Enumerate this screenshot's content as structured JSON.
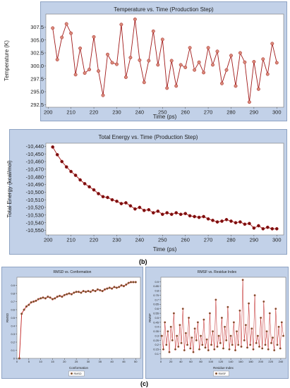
{
  "labels": {
    "b": "(b)",
    "c": "(c)"
  },
  "chart_data": [
    {
      "id": "temp",
      "type": "line",
      "title": "Temperature vs. Time  (Production Step)",
      "xlabel": "Time (ps)",
      "ylabel": "Temperature (K)",
      "xlim": [
        199,
        303
      ],
      "ylim": [
        292,
        310
      ],
      "xticks": [
        200,
        210,
        220,
        230,
        240,
        250,
        260,
        270,
        280,
        290,
        300
      ],
      "yticks": [
        292.5,
        295.0,
        297.5,
        300.0,
        302.5,
        305.0,
        307.5
      ],
      "ytick_labels": [
        "292.5",
        "295.0",
        "297.5",
        "300.0",
        "302.5",
        "305.0",
        "307.5"
      ],
      "grid": false,
      "colors": {
        "line": "#a01818",
        "marker": "#d98a7a"
      },
      "x": [
        202,
        204,
        206,
        208,
        210,
        212,
        214,
        216,
        218,
        220,
        222,
        224,
        226,
        228,
        230,
        232,
        234,
        236,
        238,
        240,
        242,
        244,
        246,
        248,
        250,
        252,
        254,
        256,
        258,
        260,
        262,
        264,
        266,
        268,
        270,
        272,
        274,
        276,
        278,
        280,
        282,
        284,
        286,
        288,
        290,
        292,
        294,
        296,
        298,
        300
      ],
      "values": [
        307.3,
        301.2,
        305.5,
        308.1,
        306.3,
        298.3,
        303.4,
        298.6,
        299.3,
        305.6,
        299.0,
        294.3,
        302.2,
        300.6,
        300.3,
        308.0,
        297.8,
        301.6,
        309.0,
        301.1,
        296.8,
        301.0,
        306.7,
        300.2,
        305.1,
        295.7,
        301.0,
        296.1,
        300.2,
        299.7,
        303.5,
        299.2,
        300.7,
        298.7,
        303.5,
        300.2,
        302.8,
        296.6,
        299.2,
        302.0,
        296.1,
        302.5,
        300.7,
        293.0,
        300.8,
        295.5,
        301.3,
        298.4,
        304.3,
        300.6
      ]
    },
    {
      "id": "energy",
      "type": "line",
      "title": "Total Energy vs. Time  (Production Step)",
      "xlabel": "Time (ps)",
      "ylabel": "Total Energy (kcal/mol)",
      "xlim": [
        199,
        303
      ],
      "ylim": [
        -10556,
        -10436
      ],
      "xticks": [
        200,
        210,
        220,
        230,
        240,
        250,
        260,
        270,
        280,
        290,
        300
      ],
      "yticks": [
        -10440,
        -10450,
        -10460,
        -10470,
        -10480,
        -10490,
        -10500,
        -10510,
        -10520,
        -10530,
        -10540,
        -10550
      ],
      "ytick_labels": [
        "-10,440",
        "-10,450",
        "-10,460",
        "-10,470",
        "-10,480",
        "-10,490",
        "-10,500",
        "-10,510",
        "-10,520",
        "-10,530",
        "-10,540",
        "-10,550"
      ],
      "grid": false,
      "colors": {
        "line": "#a01818",
        "marker": "#7a1010"
      },
      "x": [
        202,
        204,
        206,
        208,
        210,
        212,
        214,
        216,
        218,
        220,
        222,
        224,
        226,
        228,
        230,
        232,
        234,
        236,
        238,
        240,
        242,
        244,
        246,
        248,
        250,
        252,
        254,
        256,
        258,
        260,
        262,
        264,
        266,
        268,
        270,
        272,
        274,
        276,
        278,
        280,
        282,
        284,
        286,
        288,
        290,
        292,
        294,
        296,
        298,
        300
      ],
      "values": [
        -10441,
        -10451,
        -10460,
        -10467,
        -10473,
        -10478,
        -10484,
        -10489,
        -10493,
        -10497,
        -10502,
        -10506,
        -10507,
        -10510,
        -10512,
        -10515,
        -10514,
        -10518,
        -10522,
        -10520,
        -10524,
        -10523,
        -10527,
        -10525,
        -10529,
        -10527,
        -10529,
        -10527,
        -10529,
        -10528,
        -10531,
        -10532,
        -10533,
        -10532,
        -10535,
        -10537,
        -10539,
        -10538,
        -10536,
        -10538,
        -10540,
        -10539,
        -10542,
        -10541,
        -10547,
        -10544,
        -10548,
        -10546,
        -10548,
        -10548
      ]
    },
    {
      "id": "rmsd",
      "type": "line",
      "title": "RMSD vs. Conformation",
      "xlabel": "Conformation",
      "ylabel": "RMSD",
      "xlim": [
        0,
        52
      ],
      "ylim": [
        0,
        1.0
      ],
      "xticks": [
        0,
        5,
        10,
        15,
        20,
        25,
        30,
        35,
        40,
        45,
        50
      ],
      "yticks": [
        0,
        0.1,
        0.2,
        0.3,
        0.4,
        0.5,
        0.6,
        0.7,
        0.8,
        0.9
      ],
      "ytick_labels": [
        "0",
        "0.1",
        "0.2",
        "0.3",
        "0.4",
        "0.5",
        "0.6",
        "0.7",
        "0.8",
        "0.9"
      ],
      "legend": "bottom-center",
      "series_name": "RMSD",
      "grid": false,
      "colors": {
        "line": "#c02020",
        "marker": "#556b2f"
      },
      "x": [
        1,
        2,
        3,
        4,
        5,
        6,
        7,
        8,
        9,
        10,
        11,
        12,
        13,
        14,
        15,
        16,
        17,
        18,
        19,
        20,
        21,
        22,
        23,
        24,
        25,
        26,
        27,
        28,
        29,
        30,
        31,
        32,
        33,
        34,
        35,
        36,
        37,
        38,
        39,
        40,
        41,
        42,
        43,
        44,
        45,
        46,
        47,
        48,
        49,
        50
      ],
      "values": [
        0.0,
        0.55,
        0.6,
        0.64,
        0.66,
        0.69,
        0.7,
        0.71,
        0.73,
        0.74,
        0.75,
        0.74,
        0.76,
        0.75,
        0.73,
        0.74,
        0.76,
        0.77,
        0.76,
        0.78,
        0.79,
        0.8,
        0.79,
        0.81,
        0.82,
        0.82,
        0.81,
        0.83,
        0.82,
        0.83,
        0.82,
        0.84,
        0.83,
        0.85,
        0.84,
        0.83,
        0.85,
        0.86,
        0.87,
        0.86,
        0.88,
        0.87,
        0.88,
        0.9,
        0.89,
        0.91,
        0.93,
        0.94,
        0.94,
        0.94
      ]
    },
    {
      "id": "rmsf",
      "type": "line",
      "title": "RMSF vs. Residue Index",
      "xlabel": "Residue Index",
      "ylabel": "RMSF",
      "xlim": [
        0,
        250
      ],
      "ylim": [
        0.05,
        0.95
      ],
      "xticks": [
        0,
        20,
        40,
        60,
        80,
        100,
        120,
        140,
        160,
        180,
        200,
        220,
        240
      ],
      "yticks": [
        0.1,
        0.15,
        0.2,
        0.25,
        0.3,
        0.35,
        0.4,
        0.45,
        0.5,
        0.55,
        0.6,
        0.65,
        0.7,
        0.75,
        0.8,
        0.85,
        0.9
      ],
      "ytick_labels": [
        "0.1",
        "0.15",
        "0.2",
        "0.25",
        "0.3",
        "0.35",
        "0.4",
        "0.45",
        "0.5",
        "0.55",
        "0.6",
        "0.65",
        "0.7",
        "0.75",
        "0.8",
        "0.85",
        "0.9"
      ],
      "legend": "bottom-center",
      "series_name": "RMSF",
      "grid": false,
      "colors": {
        "line": "#c02020",
        "marker": "#556b2f"
      },
      "x": [
        2,
        5,
        8,
        11,
        14,
        17,
        20,
        23,
        26,
        29,
        32,
        35,
        38,
        41,
        44,
        47,
        50,
        53,
        56,
        59,
        62,
        65,
        68,
        71,
        74,
        77,
        80,
        83,
        86,
        89,
        92,
        95,
        98,
        101,
        104,
        107,
        110,
        113,
        116,
        119,
        122,
        125,
        128,
        131,
        134,
        137,
        140,
        143,
        146,
        149,
        152,
        155,
        158,
        161,
        164,
        167,
        170,
        173,
        176,
        179,
        182,
        185,
        188,
        191,
        194,
        197,
        200,
        203,
        206,
        209,
        212,
        215,
        218,
        221,
        224,
        227,
        230,
        233,
        236,
        239,
        242,
        245
      ],
      "values": [
        0.3,
        0.15,
        0.45,
        0.2,
        0.35,
        0.12,
        0.4,
        0.25,
        0.55,
        0.15,
        0.3,
        0.18,
        0.42,
        0.22,
        0.6,
        0.14,
        0.33,
        0.2,
        0.5,
        0.16,
        0.28,
        0.12,
        0.38,
        0.25,
        0.45,
        0.15,
        0.3,
        0.2,
        0.48,
        0.17,
        0.26,
        0.14,
        0.55,
        0.2,
        0.35,
        0.15,
        0.7,
        0.18,
        0.3,
        0.22,
        0.5,
        0.16,
        0.4,
        0.25,
        0.62,
        0.15,
        0.3,
        0.2,
        0.45,
        0.14,
        0.35,
        0.2,
        0.58,
        0.18,
        0.92,
        0.25,
        0.42,
        0.17,
        0.66,
        0.2,
        0.38,
        0.15,
        0.75,
        0.22,
        0.3,
        0.18,
        0.5,
        0.16,
        0.68,
        0.2,
        0.35,
        0.15,
        0.55,
        0.22,
        0.28,
        0.14,
        0.6,
        0.2,
        0.4,
        0.16,
        0.45,
        0.3
      ]
    }
  ]
}
